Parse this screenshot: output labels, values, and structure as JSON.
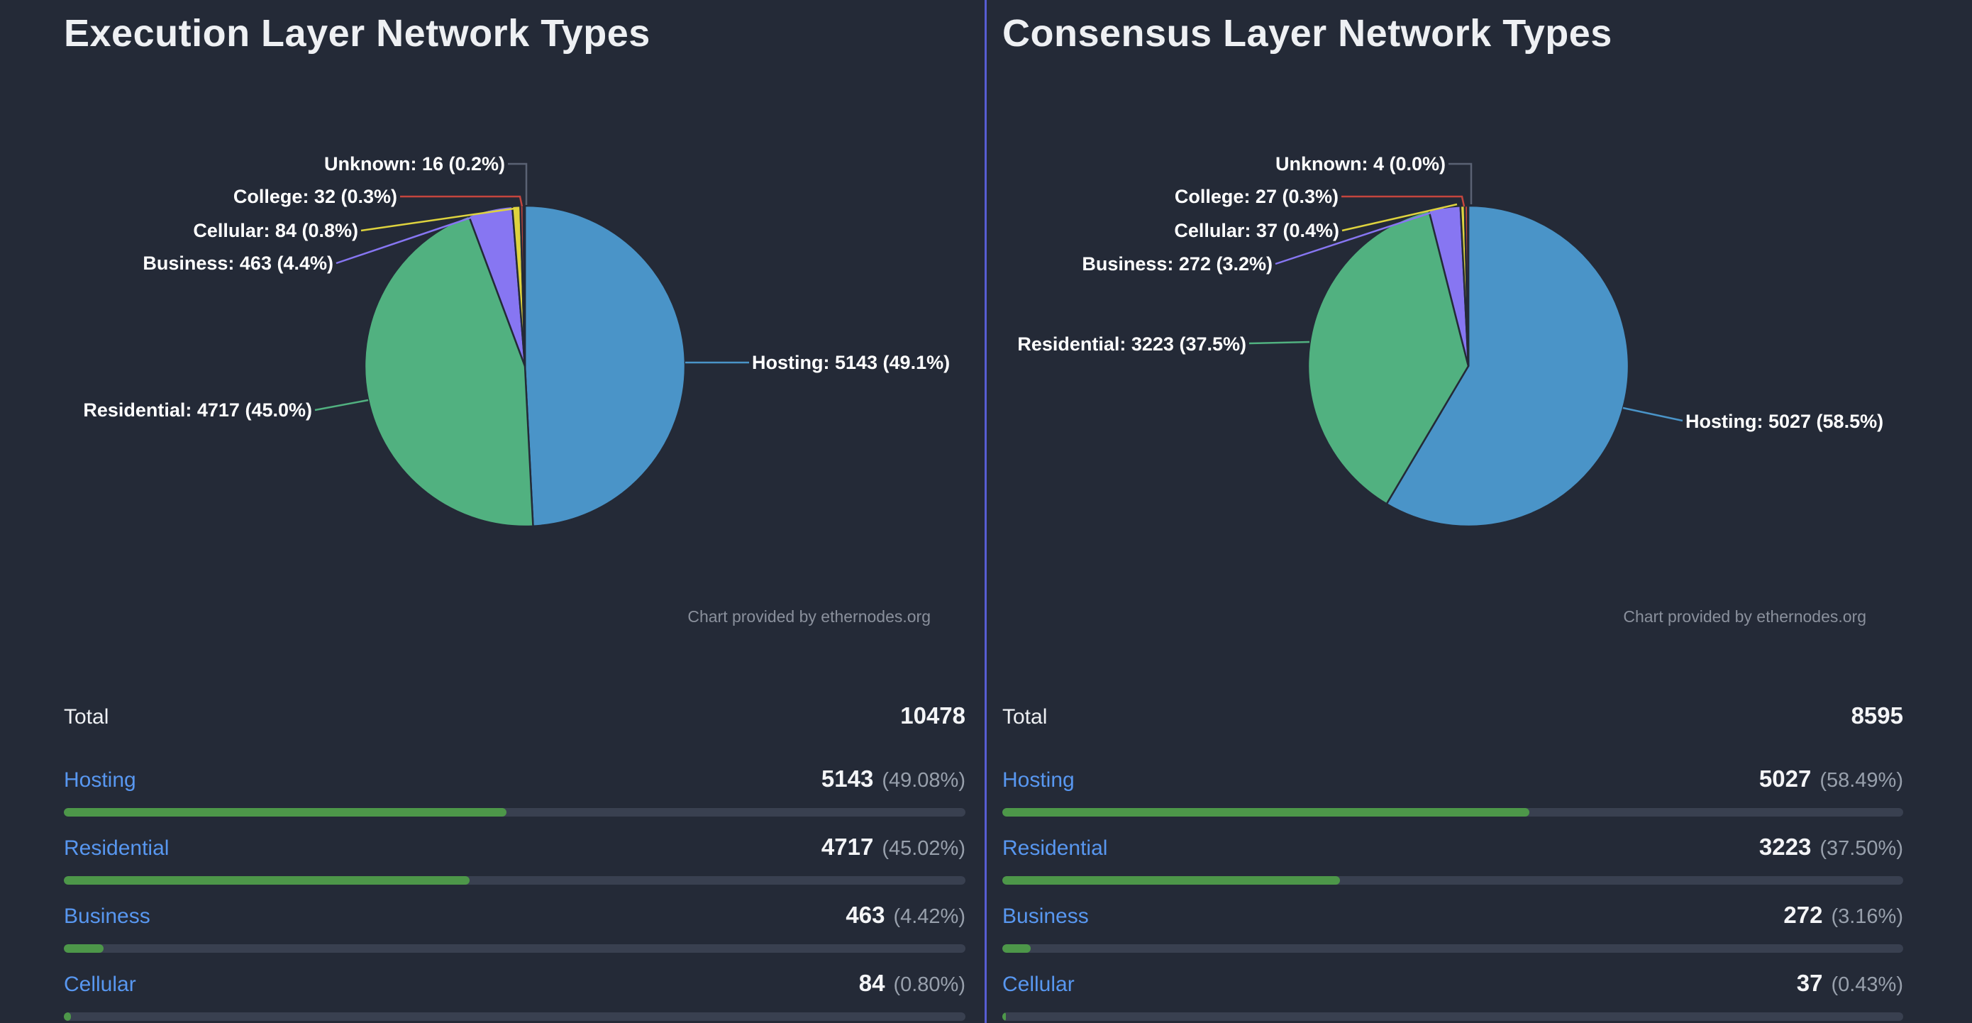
{
  "page": {
    "background": "#242a37",
    "divider_color": "#575dd2"
  },
  "credit": "Chart provided by ethernodes.org",
  "colors": {
    "hosting": "#4a94c8",
    "residential": "#51b180",
    "business": "#8776f2",
    "cellular": "#ded33e",
    "college": "#c4453e",
    "unknown": "#5a6274",
    "link": "#5897f0",
    "bar_fill": "#4d9749",
    "bar_track": "#394050",
    "number": "#f4f5f7",
    "percent": "#98a0ac",
    "credit": "#8a909c",
    "title": "#eef0f3",
    "pie_label": "#ffffff"
  },
  "panels": [
    {
      "title": "Execution Layer Network Types",
      "chart_data": {
        "type": "pie",
        "title": "Execution Layer Network Types",
        "legend_position": "none",
        "slices": [
          {
            "name": "hosting",
            "label": "Hosting",
            "value": 5143,
            "pct": 49.1,
            "display": "Hosting: 5143 (49.1%)",
            "color": "#4a94c8"
          },
          {
            "name": "residential",
            "label": "Residential",
            "value": 4717,
            "pct": 45.0,
            "display": "Residential: 4717 (45.0%)",
            "color": "#51b180"
          },
          {
            "name": "business",
            "label": "Business",
            "value": 463,
            "pct": 4.4,
            "display": "Business: 463 (4.4%)",
            "color": "#8776f2"
          },
          {
            "name": "cellular",
            "label": "Cellular",
            "value": 84,
            "pct": 0.8,
            "display": "Cellular: 84 (0.8%)",
            "color": "#ded33e"
          },
          {
            "name": "college",
            "label": "College",
            "value": 32,
            "pct": 0.3,
            "display": "College: 32 (0.3%)",
            "color": "#c4453e"
          },
          {
            "name": "unknown",
            "label": "Unknown",
            "value": 16,
            "pct": 0.2,
            "display": "Unknown: 16 (0.2%)",
            "color": "#5a6274"
          }
        ]
      },
      "table": {
        "total_label": "Total",
        "total_value": "10478",
        "rows": [
          {
            "label": "Hosting",
            "value": "5143",
            "pct": "(49.08%)",
            "bar_pct": 49.08
          },
          {
            "label": "Residential",
            "value": "4717",
            "pct": "(45.02%)",
            "bar_pct": 45.02
          },
          {
            "label": "Business",
            "value": "463",
            "pct": "(4.42%)",
            "bar_pct": 4.42
          },
          {
            "label": "Cellular",
            "value": "84",
            "pct": "(0.80%)",
            "bar_pct": 0.8
          }
        ]
      }
    },
    {
      "title": "Consensus Layer Network Types",
      "chart_data": {
        "type": "pie",
        "title": "Consensus Layer Network Types",
        "legend_position": "none",
        "slices": [
          {
            "name": "hosting",
            "label": "Hosting",
            "value": 5027,
            "pct": 58.5,
            "display": "Hosting: 5027 (58.5%)",
            "color": "#4a94c8"
          },
          {
            "name": "residential",
            "label": "Residential",
            "value": 3223,
            "pct": 37.5,
            "display": "Residential: 3223 (37.5%)",
            "color": "#51b180"
          },
          {
            "name": "business",
            "label": "Business",
            "value": 272,
            "pct": 3.2,
            "display": "Business: 272 (3.2%)",
            "color": "#8776f2"
          },
          {
            "name": "cellular",
            "label": "Cellular",
            "value": 37,
            "pct": 0.4,
            "display": "Cellular: 37 (0.4%)",
            "color": "#ded33e"
          },
          {
            "name": "college",
            "label": "College",
            "value": 27,
            "pct": 0.3,
            "display": "College: 27 (0.3%)",
            "color": "#c4453e"
          },
          {
            "name": "unknown",
            "label": "Unknown",
            "value": 4,
            "pct": 0.0,
            "display": "Unknown: 4 (0.0%)",
            "color": "#5a6274"
          }
        ]
      },
      "table": {
        "total_label": "Total",
        "total_value": "8595",
        "rows": [
          {
            "label": "Hosting",
            "value": "5027",
            "pct": "(58.49%)",
            "bar_pct": 58.49
          },
          {
            "label": "Residential",
            "value": "3223",
            "pct": "(37.50%)",
            "bar_pct": 37.5
          },
          {
            "label": "Business",
            "value": "272",
            "pct": "(3.16%)",
            "bar_pct": 3.16
          },
          {
            "label": "Cellular",
            "value": "37",
            "pct": "(0.43%)",
            "bar_pct": 0.43
          }
        ]
      }
    }
  ]
}
